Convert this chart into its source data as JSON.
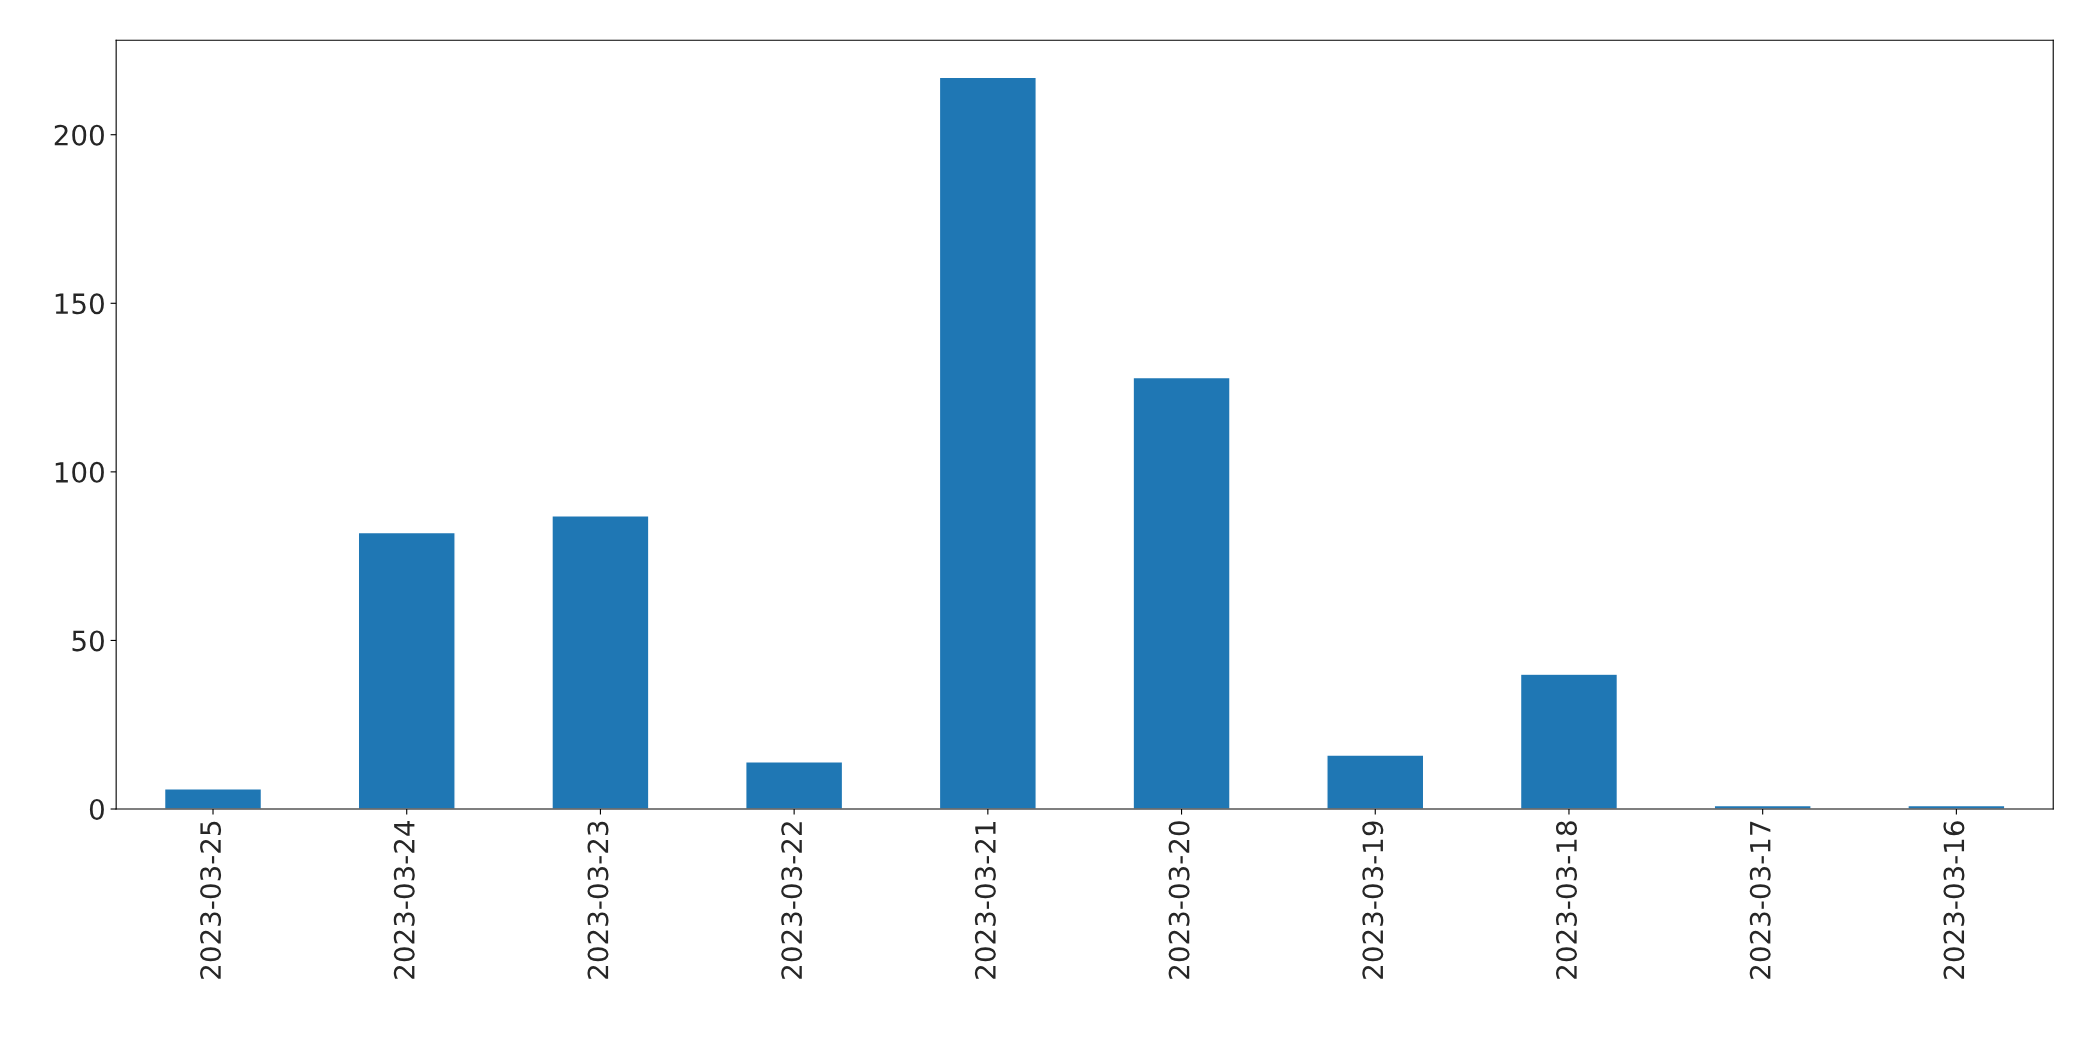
{
  "chart_data": {
    "type": "bar",
    "categories": [
      "2023-03-25",
      "2023-03-24",
      "2023-03-23",
      "2023-03-22",
      "2023-03-21",
      "2023-03-20",
      "2023-03-19",
      "2023-03-18",
      "2023-03-17",
      "2023-03-16"
    ],
    "values": [
      6,
      82,
      87,
      14,
      217,
      128,
      16,
      40,
      1,
      1
    ],
    "color": "#1f77b4",
    "ylim": [
      0,
      228
    ],
    "yticks": [
      0,
      50,
      100,
      150,
      200
    ],
    "grid": false,
    "legend": false
  }
}
